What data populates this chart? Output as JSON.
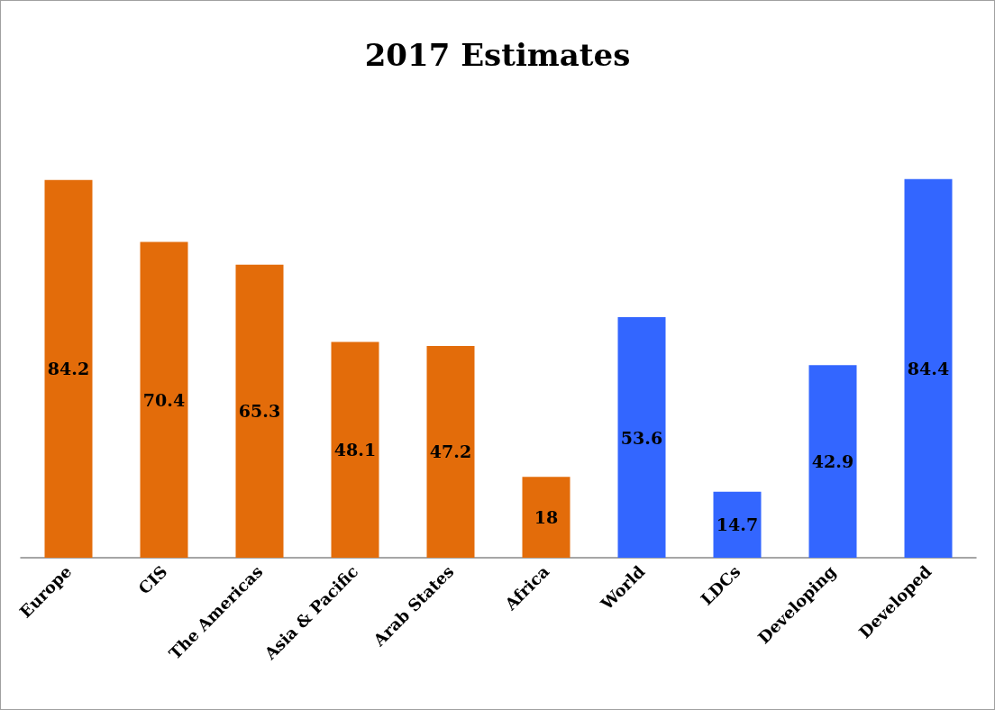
{
  "chart_data": {
    "type": "bar",
    "title": "2017 Estimates",
    "categories": [
      "Europe",
      "CIS",
      "The Americas",
      "Asia & Pacific",
      "Arab States",
      "Africa",
      "World",
      "LDCs",
      "Developing",
      "Developed"
    ],
    "values": [
      84.2,
      70.4,
      65.3,
      48.1,
      47.2,
      18,
      53.6,
      14.7,
      42.9,
      84.4
    ],
    "colors": [
      "#e36c0a",
      "#e36c0a",
      "#e36c0a",
      "#e36c0a",
      "#e36c0a",
      "#e36c0a",
      "#3366ff",
      "#3366ff",
      "#3366ff",
      "#3366ff"
    ],
    "data_labels": true
  }
}
